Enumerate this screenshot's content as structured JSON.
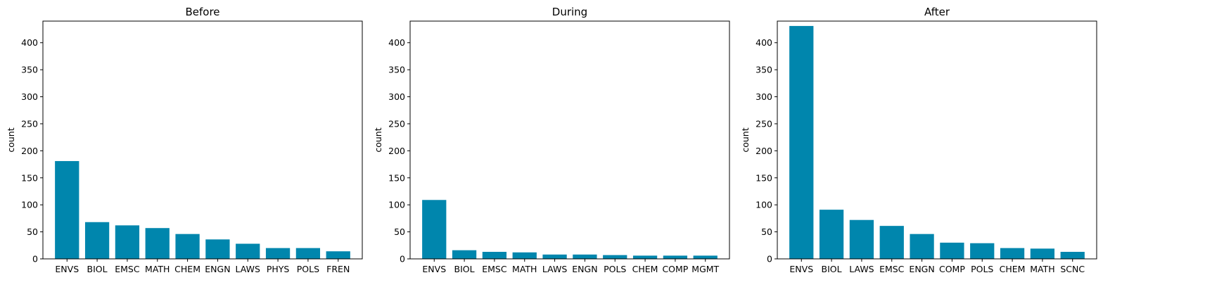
{
  "chart_data": [
    {
      "type": "bar",
      "title": "Before",
      "ylabel": "count",
      "ylim": [
        0,
        440
      ],
      "yticks": [
        0,
        50,
        100,
        150,
        200,
        250,
        300,
        350,
        400
      ],
      "categories": [
        "ENVS",
        "BIOL",
        "EMSC",
        "MATH",
        "CHEM",
        "ENGN",
        "LAWS",
        "PHYS",
        "POLS",
        "FREN"
      ],
      "values": [
        181,
        68,
        62,
        57,
        46,
        36,
        28,
        20,
        20,
        14
      ],
      "color": "#0086ad"
    },
    {
      "type": "bar",
      "title": "During",
      "ylabel": "count",
      "ylim": [
        0,
        440
      ],
      "yticks": [
        0,
        50,
        100,
        150,
        200,
        250,
        300,
        350,
        400
      ],
      "categories": [
        "ENVS",
        "BIOL",
        "EMSC",
        "MATH",
        "LAWS",
        "ENGN",
        "POLS",
        "CHEM",
        "COMP",
        "MGMT"
      ],
      "values": [
        109,
        16,
        13,
        12,
        8,
        8,
        7,
        6,
        6,
        6
      ],
      "color": "#0086ad"
    },
    {
      "type": "bar",
      "title": "After",
      "ylabel": "count",
      "ylim": [
        0,
        440
      ],
      "yticks": [
        0,
        50,
        100,
        150,
        200,
        250,
        300,
        350,
        400
      ],
      "categories": [
        "ENVS",
        "BIOL",
        "LAWS",
        "EMSC",
        "ENGN",
        "COMP",
        "POLS",
        "CHEM",
        "MATH",
        "SCNC"
      ],
      "values": [
        431,
        91,
        72,
        61,
        46,
        30,
        29,
        20,
        19,
        13
      ],
      "color": "#0086ad"
    }
  ]
}
